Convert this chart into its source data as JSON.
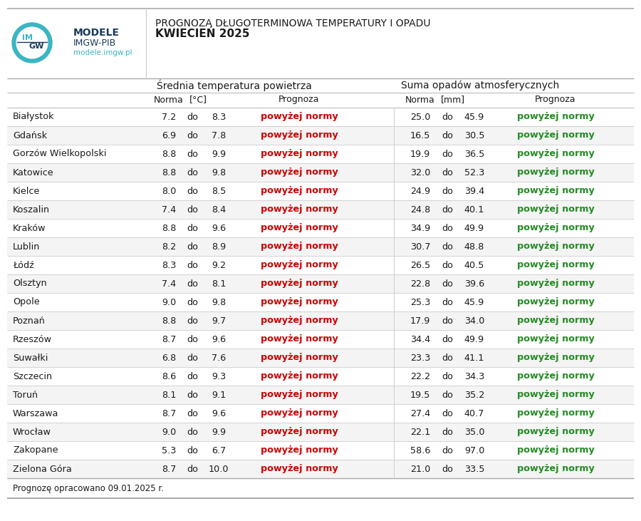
{
  "title_line1": "PROGNOZA DŁUGOTERMINOWA TEMPERATURY I OPADU",
  "title_line2": "KWIECIEŃ 2025",
  "cities": [
    "Białystok",
    "Gdańsk",
    "Gorzów Wielkopolski",
    "Katowice",
    "Kielce",
    "Koszalin",
    "Kraków",
    "Lublin",
    "Łódź",
    "Olsztyn",
    "Opole",
    "Poznań",
    "Rzeszów",
    "Suwałki",
    "Szczecin",
    "Toruń",
    "Warszawa",
    "Wrocław",
    "Zakopane",
    "Zielona Góra"
  ],
  "temp_norma_low": [
    7.2,
    6.9,
    8.8,
    8.8,
    8.0,
    7.4,
    8.8,
    8.2,
    8.3,
    7.4,
    9.0,
    8.8,
    8.7,
    6.8,
    8.6,
    8.1,
    8.7,
    9.0,
    5.3,
    8.7
  ],
  "temp_norma_high": [
    8.3,
    7.8,
    9.9,
    9.8,
    8.5,
    8.4,
    9.6,
    8.9,
    9.2,
    8.1,
    9.8,
    9.7,
    9.6,
    7.6,
    9.3,
    9.1,
    9.6,
    9.9,
    6.7,
    10.0
  ],
  "precip_norma_low": [
    25.0,
    16.5,
    19.9,
    32.0,
    24.9,
    24.8,
    34.9,
    30.7,
    26.5,
    22.8,
    25.3,
    17.9,
    34.4,
    23.3,
    22.2,
    19.5,
    27.4,
    22.1,
    58.6,
    21.0
  ],
  "precip_norma_high": [
    45.9,
    30.5,
    36.5,
    52.3,
    39.4,
    40.1,
    49.9,
    48.8,
    40.5,
    39.6,
    45.9,
    34.0,
    49.9,
    41.1,
    34.3,
    35.2,
    40.7,
    35.0,
    97.0,
    33.5
  ],
  "footer": "Prognozę opracowano 09.01.2025 r.",
  "temp_prognoza_color": "#cc0000",
  "precip_prognoza_color": "#228B22",
  "prognoza_text": "powyżej normy"
}
